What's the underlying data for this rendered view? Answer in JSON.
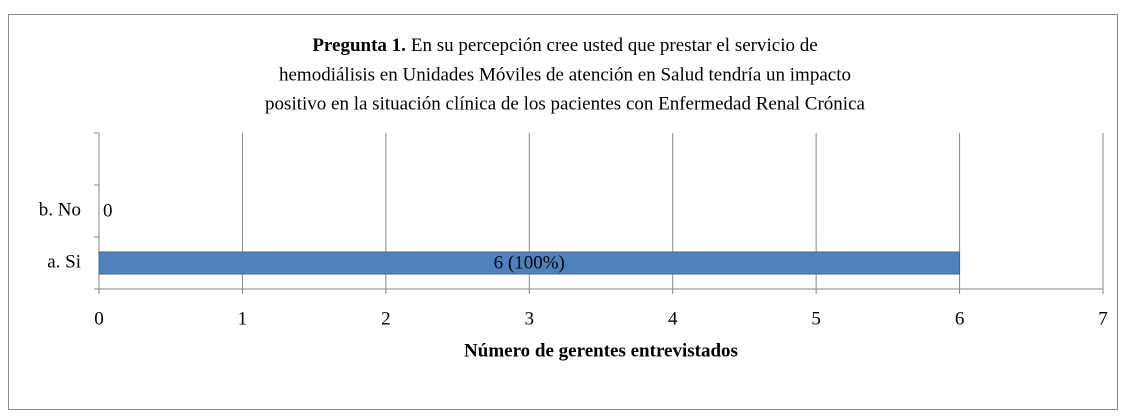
{
  "chart_data": {
    "type": "barh",
    "title_lead": "Pregunta 1.",
    "title_lines": [
      "En su percepción cree usted que prestar el servicio de",
      "hemodiálisis en Unidades Móviles de atención en Salud tendría un impacto",
      "positivo en la situación clínica de los pacientes con Enfermedad Renal Crónica"
    ],
    "categories": [
      "a. Si",
      "b. No",
      null
    ],
    "values": [
      6,
      0,
      null
    ],
    "value_labels": [
      "6 (100%)",
      "0",
      null
    ],
    "color": "#4f81bd",
    "xlabel": "Número de gerentes entrevistados",
    "xlim": [
      0,
      7
    ],
    "xticks": [
      0,
      1,
      2,
      3,
      4,
      5,
      6,
      7
    ],
    "grid": true
  }
}
